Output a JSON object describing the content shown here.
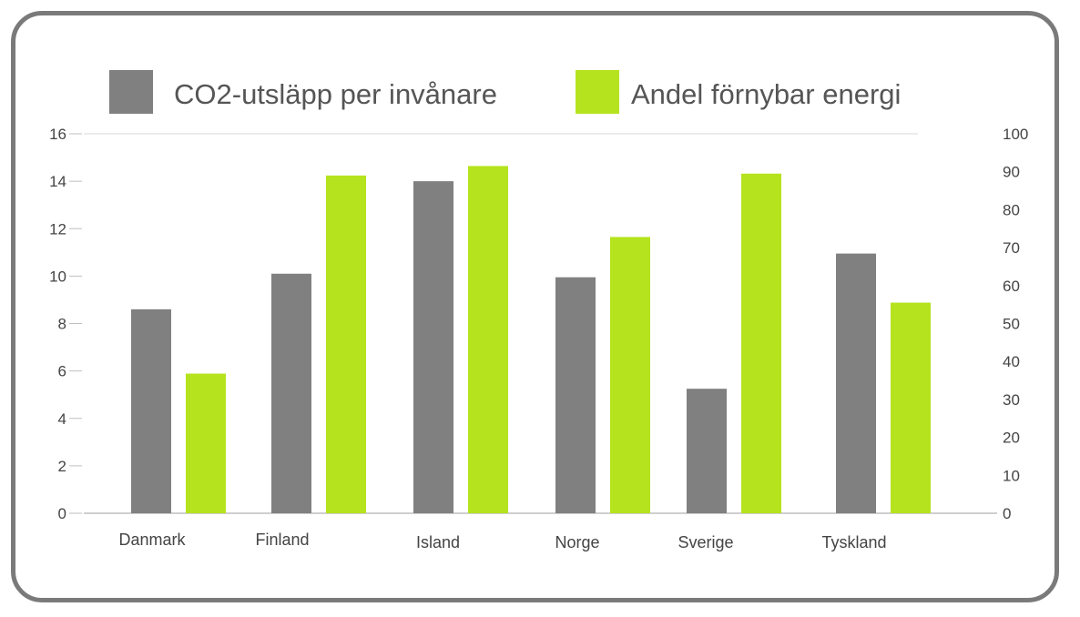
{
  "chart_data": {
    "type": "bar",
    "categories": [
      "Danmark",
      "Finland",
      "Island",
      "Norge",
      "Sverige",
      "Tyskland"
    ],
    "series": [
      {
        "name": "CO2-utsläpp per invånare",
        "axis": "left",
        "color": "#808080",
        "values": [
          8.6,
          10.1,
          14.0,
          9.95,
          5.25,
          10.95
        ]
      },
      {
        "name": "Andel förnybar energi",
        "axis": "right",
        "color": "#b5e31e",
        "values": [
          36.8,
          89.0,
          91.5,
          72.8,
          89.5,
          55.5
        ]
      }
    ],
    "yleft": {
      "range": [
        0,
        16
      ],
      "ticks": [
        "0",
        "2",
        "4",
        "6",
        "8",
        "10",
        "12",
        "14",
        "16"
      ]
    },
    "yright": {
      "range": [
        0,
        100
      ],
      "ticks": [
        "0",
        "10",
        "20",
        "30",
        "40",
        "50",
        "60",
        "70",
        "80",
        "90",
        "100"
      ]
    },
    "legend_position": "top",
    "grid": "top line only"
  }
}
